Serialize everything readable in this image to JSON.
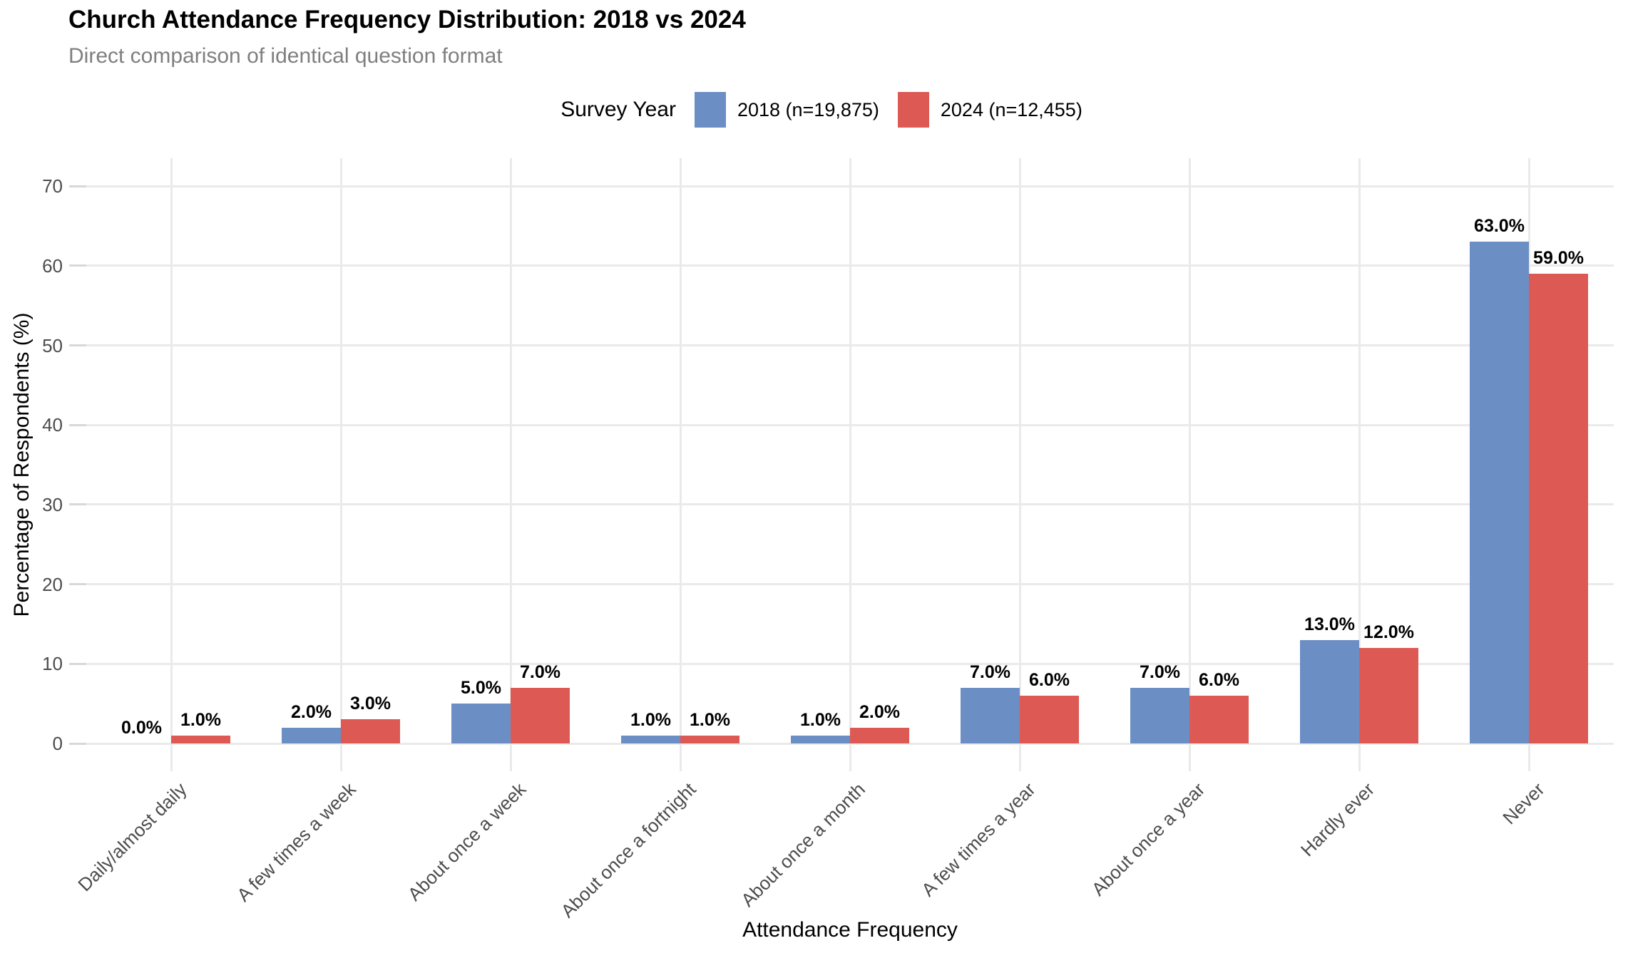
{
  "title": "Church Attendance Frequency Distribution: 2018 vs 2024",
  "subtitle": "Direct comparison of identical question format",
  "legend": {
    "title": "Survey Year",
    "position": "top"
  },
  "chart_data": {
    "type": "bar",
    "title": "Church Attendance Frequency Distribution: 2018 vs 2024",
    "subtitle": "Direct comparison of identical question format",
    "xlabel": "Attendance Frequency",
    "ylabel": "Percentage of Respondents (%)",
    "categories": [
      "Daily/almost daily",
      "A few times a week",
      "About once a week",
      "About once a fortnight",
      "About once a month",
      "A few times a year",
      "About once a year",
      "Hardly ever",
      "Never"
    ],
    "series": [
      {
        "name": "2018 (n=19,875)",
        "color": "#6b8ec4",
        "values": [
          0.0,
          2.0,
          5.0,
          1.0,
          1.0,
          7.0,
          7.0,
          13.0,
          63.0
        ],
        "labels": [
          "0.0%",
          "2.0%",
          "5.0%",
          "1.0%",
          "1.0%",
          "7.0%",
          "7.0%",
          "13.0%",
          "63.0%"
        ]
      },
      {
        "name": "2024 (n=12,455)",
        "color": "#dd5a54",
        "values": [
          1.0,
          3.0,
          7.0,
          1.0,
          2.0,
          6.0,
          6.0,
          12.0,
          59.0
        ],
        "labels": [
          "1.0%",
          "3.0%",
          "7.0%",
          "1.0%",
          "2.0%",
          "6.0%",
          "6.0%",
          "12.0%",
          "59.0%"
        ]
      }
    ],
    "ylim": [
      0,
      70
    ],
    "yticks": [
      0,
      10,
      20,
      30,
      40,
      50,
      60,
      70
    ],
    "ytick_labels": [
      "0",
      "10",
      "20",
      "30",
      "40",
      "50",
      "60",
      "70"
    ],
    "grid": true,
    "grid_color": "#eaeaea",
    "background": "#ffffff",
    "bar_label_style": "bold-black-above-bar",
    "x_label_rotation_deg": 45,
    "legend_position": "top"
  }
}
